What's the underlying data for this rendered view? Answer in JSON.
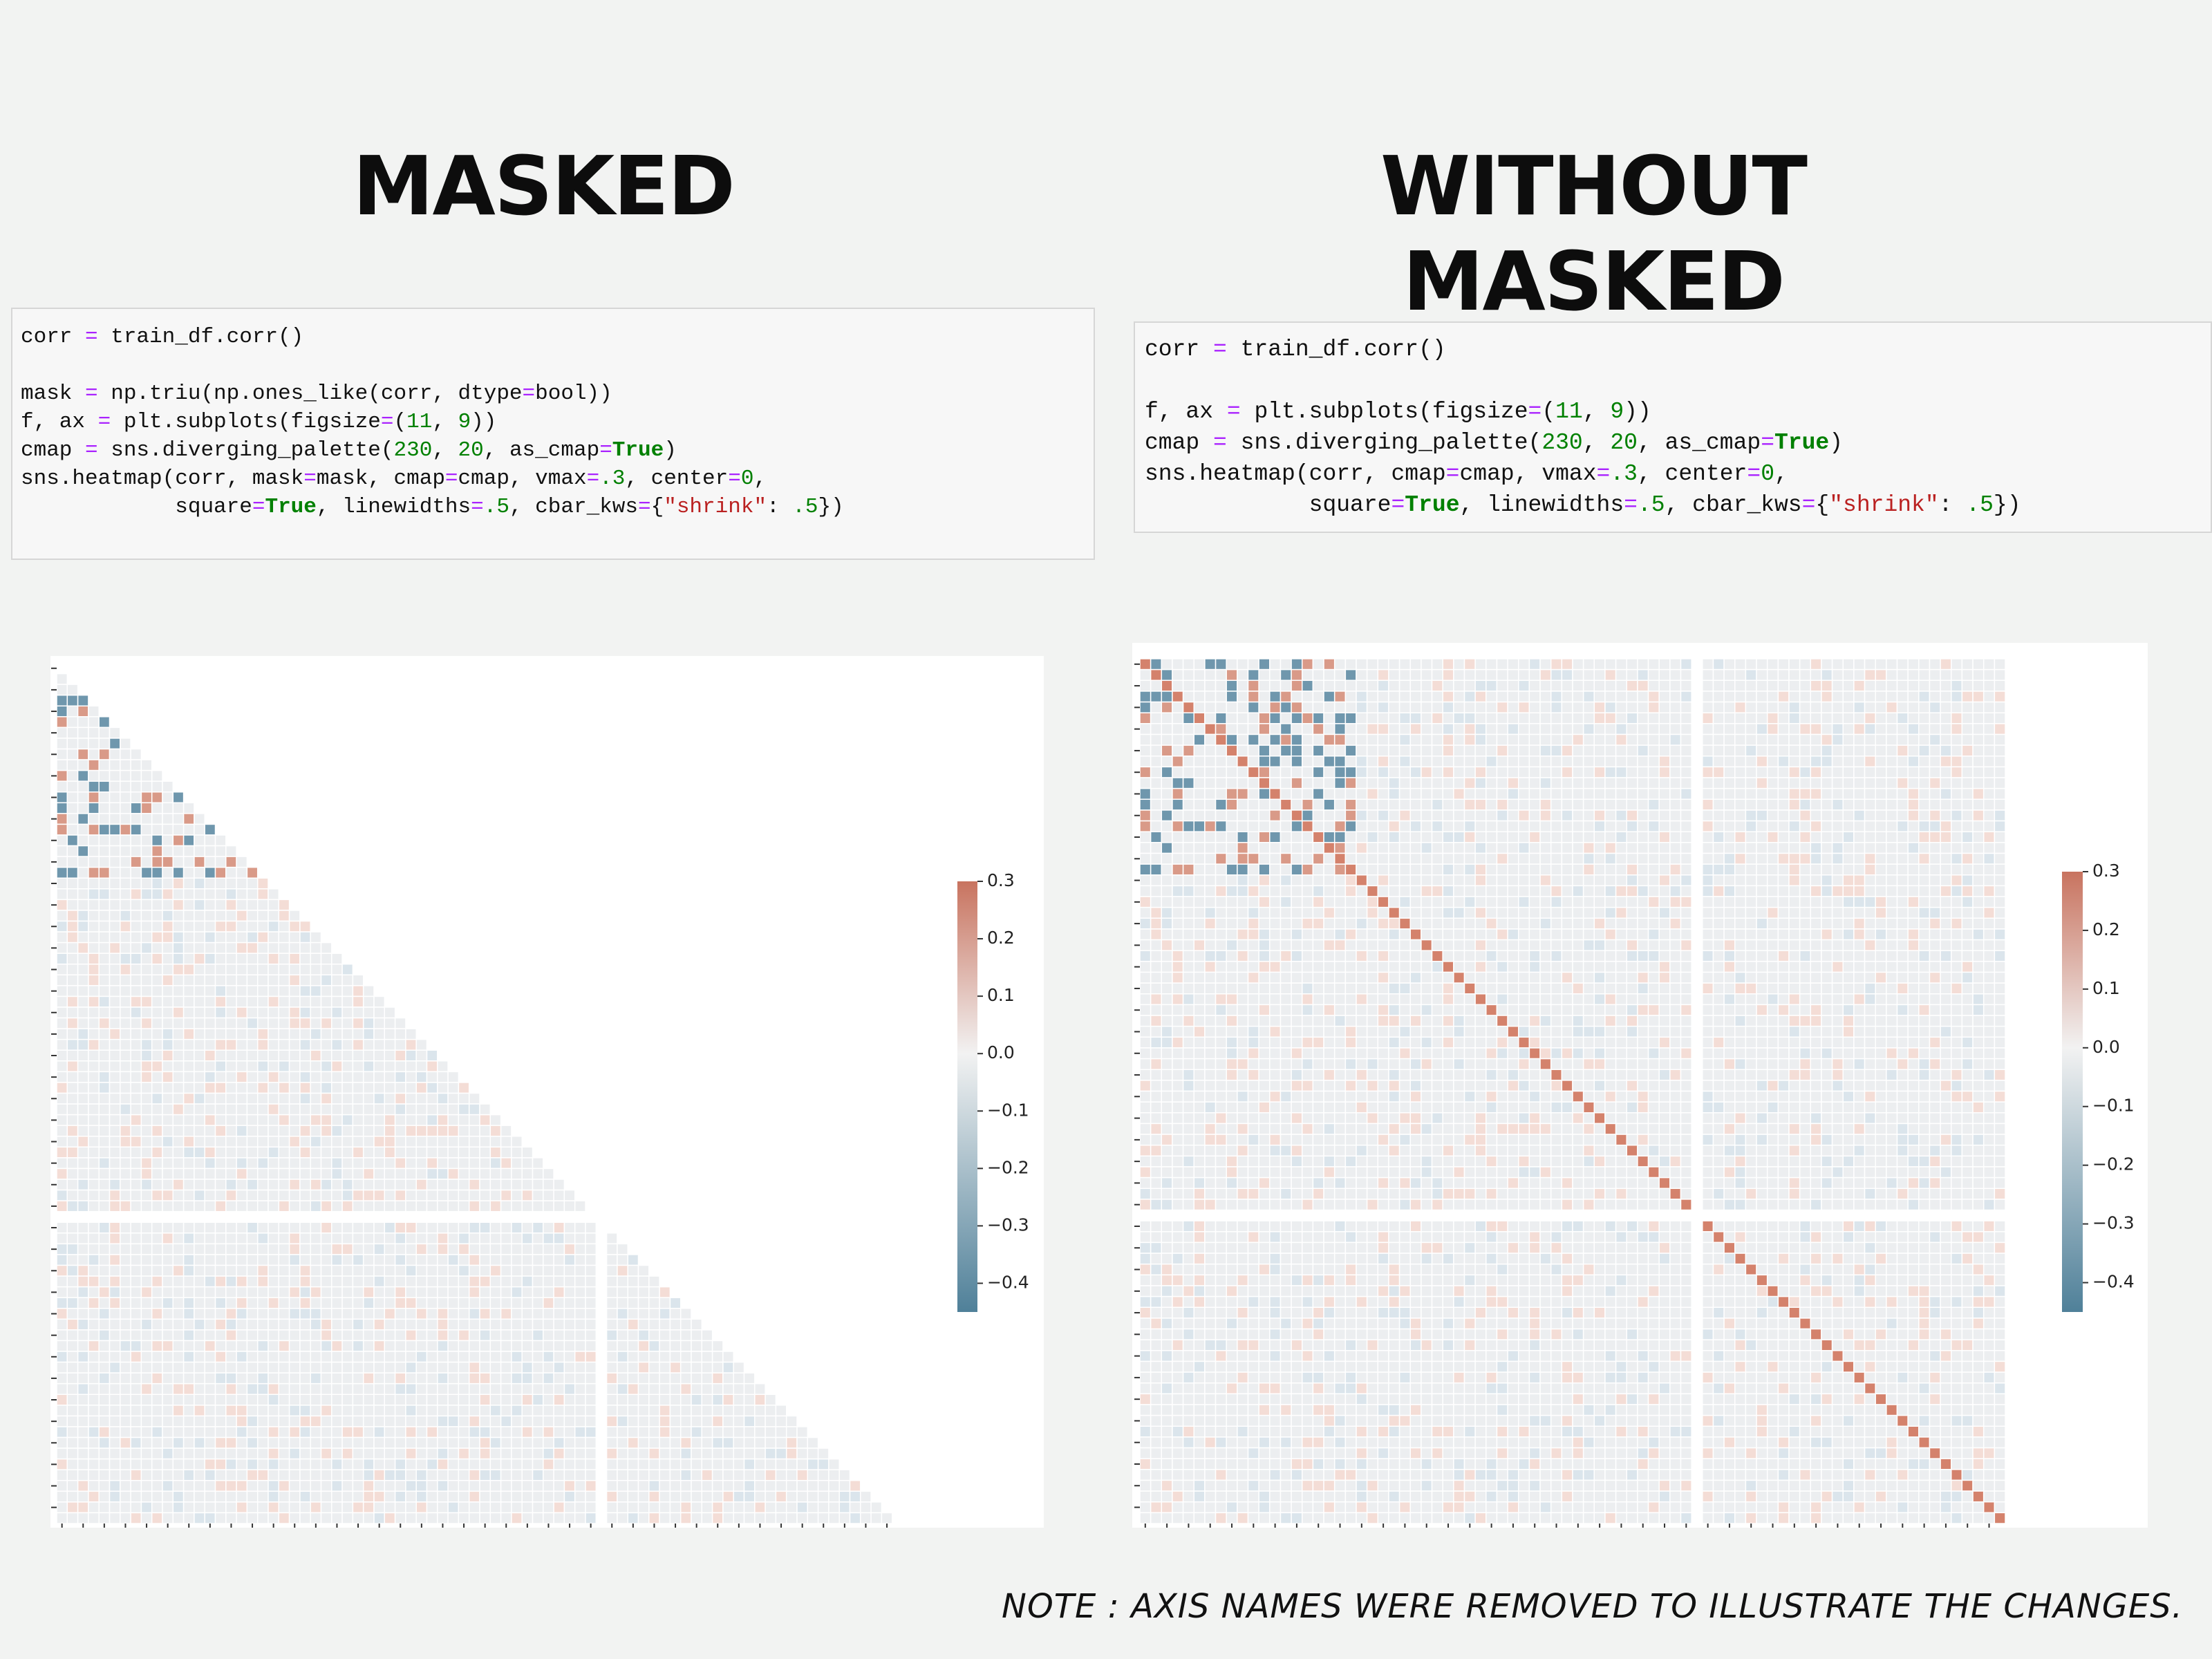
{
  "titles": {
    "left": "MASKED",
    "right": "WITHOUT MASKED"
  },
  "code_left": [
    "corr = train_df.corr()",
    "mask = np.triu(np.ones_like(corr, dtype=bool))",
    "f, ax = plt.subplots(figsize=(11, 9))",
    "cmap = sns.diverging_palette(230, 20, as_cmap=True)",
    "sns.heatmap(corr, mask=mask, cmap=cmap, vmax=.3, center=0,",
    "            square=True, linewidths=.5, cbar_kws={\"shrink\": .5})"
  ],
  "code_right": [
    "corr = train_df.corr()",
    "f, ax = plt.subplots(figsize=(11, 9))",
    "cmap = sns.diverging_palette(230, 20, as_cmap=True)",
    "sns.heatmap(corr, cmap=cmap, vmax=.3, center=0,",
    "            square=True, linewidths=.5, cbar_kws={\"shrink\": .5})"
  ],
  "colorbar": {
    "clim": [
      -0.45,
      0.3
    ],
    "ticks": [
      0.3,
      0.2,
      0.1,
      {
        "value": 0,
        "label": "0.0"
      },
      {
        "value": -0.1,
        "label": "−0.1"
      },
      {
        "value": -0.2,
        "label": "−0.2"
      },
      {
        "value": -0.3,
        "label": "−0.3"
      },
      {
        "value": -0.4,
        "label": "−0.4"
      }
    ]
  },
  "note": "NOTE : AXIS NAMES WERE REMOVED TO ILLUSTRATE THE CHANGES."
}
